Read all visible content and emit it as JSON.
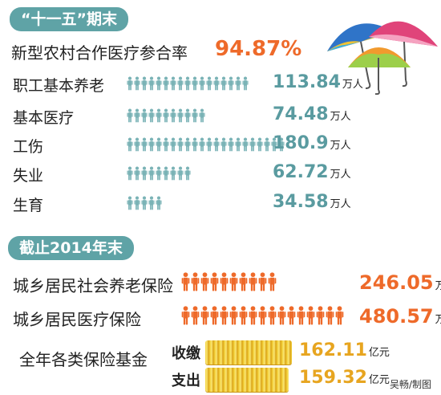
{
  "section1": {
    "title": "“十一五”期末",
    "ncms_label": "新型农村合作医疗参合率",
    "ncms_value": "94.87%",
    "rows": [
      {
        "label": "职工基本养老",
        "value": "113.84",
        "unit": "万人",
        "icons": 17
      },
      {
        "label": "基本医疗",
        "value": "74.48",
        "unit": "万人",
        "icons": 11
      },
      {
        "label": "工伤",
        "value": "180.9",
        "unit": "万人",
        "icons": 22
      },
      {
        "label": "失业",
        "value": "62.72",
        "unit": "万人",
        "icons": 9
      },
      {
        "label": "生育",
        "value": "34.58",
        "unit": "万人",
        "icons": 5
      }
    ]
  },
  "section2": {
    "title": "截止2014年末",
    "rows": [
      {
        "label": "城乡居民社会养老保险",
        "value": "246.05",
        "unit": "万人",
        "icons": 10
      },
      {
        "label": "城乡居民医疗保险",
        "value": "480.57",
        "unit": "万人",
        "icons": 17
      }
    ]
  },
  "fund": {
    "label": "全年各类保险基金",
    "income_label": "收缴",
    "income_value": "162.11",
    "expense_label": "支出",
    "expense_value": "159.32",
    "unit": "亿元"
  },
  "credit": "吴畅/制图",
  "colors": {
    "teal": "#5fa3a6",
    "teal_icon": "#7ab3b6",
    "orange": "#ee6a2a",
    "gold": "#e7a520"
  }
}
